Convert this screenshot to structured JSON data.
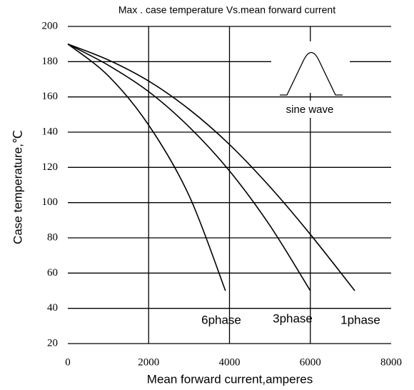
{
  "chart_data": {
    "type": "line",
    "title": "Max . case temperature Vs.mean forward current",
    "x_label": "Mean  forward current,amperes",
    "y_label": "Case temperature,℃",
    "annotation": "sine wave",
    "xlim": [
      0,
      8000
    ],
    "xticks": [
      0,
      2000,
      4000,
      6000,
      8000
    ],
    "ylim": [
      20,
      200
    ],
    "yticks": [
      20,
      40,
      60,
      80,
      100,
      120,
      140,
      160,
      180,
      200
    ],
    "grid": true,
    "series": [
      {
        "name": "6phase",
        "color": "#000000",
        "x": [
          0,
          1000,
          2000,
          3000,
          3900
        ],
        "values": [
          190,
          172,
          144,
          104,
          50
        ]
      },
      {
        "name": "3phase",
        "color": "#000000",
        "x": [
          0,
          1000,
          2000,
          3000,
          4000,
          5000,
          6000
        ],
        "values": [
          190,
          178,
          163,
          143,
          118,
          87,
          50
        ]
      },
      {
        "name": "1phase",
        "color": "#000000",
        "x": [
          0,
          1000,
          2000,
          3000,
          4000,
          5000,
          6000,
          7100
        ],
        "values": [
          190,
          181,
          169,
          153,
          133,
          109,
          82,
          50
        ]
      }
    ]
  }
}
